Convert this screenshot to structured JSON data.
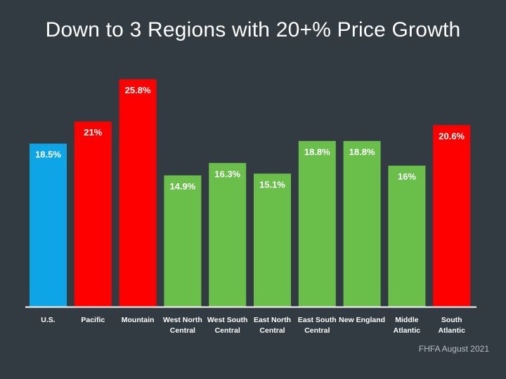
{
  "title": "Down to 3 Regions with 20+% Price Growth",
  "source": "FHFA  August 2021",
  "colors": {
    "background": "#323a42",
    "us": "#0ea5e6",
    "above_20": "#ff0000",
    "below_20": "#6abf4b",
    "text": "#ffffff",
    "axis": "#ffffff"
  },
  "chart_data": {
    "type": "bar",
    "title": "Down to 3 Regions with 20+% Price Growth",
    "xlabel": "",
    "ylabel": "",
    "ylim": [
      0,
      28
    ],
    "grid": false,
    "legend": "none",
    "categories": [
      [
        "U.S."
      ],
      [
        "Pacific"
      ],
      [
        "Mountain"
      ],
      [
        "West North",
        "Central"
      ],
      [
        "West South",
        "Central"
      ],
      [
        "East North",
        "Central"
      ],
      [
        "East South",
        "Central"
      ],
      [
        "New England"
      ],
      [
        "Middle",
        "Atlantic"
      ],
      [
        "South",
        "Atlantic"
      ]
    ],
    "values": [
      18.5,
      21,
      25.8,
      14.9,
      16.3,
      15.1,
      18.8,
      18.8,
      16,
      20.6
    ],
    "data_labels": [
      "18.5%",
      "21%",
      "25.8%",
      "14.9%",
      "16.3%",
      "15.1%",
      "18.8%",
      "18.8%",
      "16%",
      "20.6%"
    ],
    "bar_colors": [
      "#0ea5e6",
      "#ff0000",
      "#ff0000",
      "#6abf4b",
      "#6abf4b",
      "#6abf4b",
      "#6abf4b",
      "#6abf4b",
      "#6abf4b",
      "#ff0000"
    ]
  }
}
